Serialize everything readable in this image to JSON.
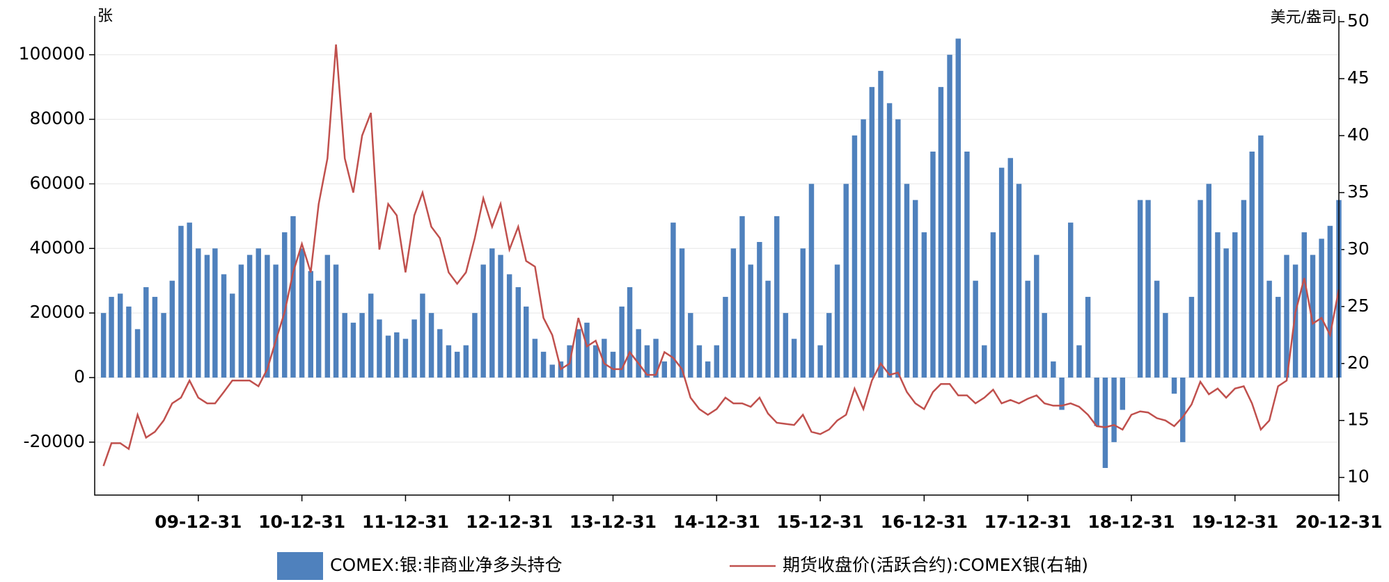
{
  "chart_data": {
    "type": "bar-line",
    "y_unit": "张",
    "y2_unit": "美元/盎司",
    "x": [
      "09-01-31",
      "09-02-28",
      "09-03-31",
      "09-04-30",
      "09-05-31",
      "09-06-30",
      "09-07-31",
      "09-08-31",
      "09-09-30",
      "09-10-31",
      "09-11-30",
      "09-12-31",
      "10-01-31",
      "10-02-28",
      "10-03-31",
      "10-04-30",
      "10-05-31",
      "10-06-30",
      "10-07-31",
      "10-08-31",
      "10-09-30",
      "10-10-31",
      "10-11-30",
      "10-12-31",
      "11-01-31",
      "11-02-28",
      "11-03-31",
      "11-04-30",
      "11-05-31",
      "11-06-30",
      "11-07-31",
      "11-08-31",
      "11-09-30",
      "11-10-31",
      "11-11-30",
      "11-12-31",
      "12-01-31",
      "12-02-29",
      "12-03-31",
      "12-04-30",
      "12-05-31",
      "12-06-30",
      "12-07-31",
      "12-08-31",
      "12-09-30",
      "12-10-31",
      "12-11-30",
      "12-12-31",
      "13-01-31",
      "13-02-28",
      "13-03-31",
      "13-04-30",
      "13-05-31",
      "13-06-30",
      "13-07-31",
      "13-08-31",
      "13-09-30",
      "13-10-31",
      "13-11-30",
      "13-12-31",
      "14-01-31",
      "14-02-28",
      "14-03-31",
      "14-04-30",
      "14-05-31",
      "14-06-30",
      "14-07-31",
      "14-08-31",
      "14-09-30",
      "14-10-31",
      "14-11-30",
      "14-12-31",
      "15-01-31",
      "15-02-28",
      "15-03-31",
      "15-04-30",
      "15-05-31",
      "15-06-30",
      "15-07-31",
      "15-08-31",
      "15-09-30",
      "15-10-31",
      "15-11-30",
      "15-12-31",
      "16-01-31",
      "16-02-29",
      "16-03-31",
      "16-04-30",
      "16-05-31",
      "16-06-30",
      "16-07-31",
      "16-08-31",
      "16-09-30",
      "16-10-31",
      "16-11-30",
      "16-12-31",
      "17-01-31",
      "17-02-28",
      "17-03-31",
      "17-04-30",
      "17-05-31",
      "17-06-30",
      "17-07-31",
      "17-08-31",
      "17-09-30",
      "17-10-31",
      "17-11-30",
      "17-12-31",
      "18-01-31",
      "18-02-28",
      "18-03-31",
      "18-04-30",
      "18-05-31",
      "18-06-30",
      "18-07-31",
      "18-08-31",
      "18-09-30",
      "18-10-31",
      "18-11-30",
      "18-12-31",
      "19-01-31",
      "19-02-28",
      "19-03-31",
      "19-04-30",
      "19-05-31",
      "19-06-30",
      "19-07-31",
      "19-08-31",
      "19-09-30",
      "19-10-31",
      "19-11-30",
      "19-12-31",
      "20-01-31",
      "20-02-29",
      "20-03-31",
      "20-04-30",
      "20-05-31",
      "20-06-30",
      "20-07-31",
      "20-08-31",
      "20-09-30",
      "20-10-31",
      "20-11-30",
      "20-12-31"
    ],
    "series": [
      {
        "name": "COMEX:银:非商业净多头持仓",
        "type": "bar",
        "color": "#4f81bd",
        "axis": "y",
        "values": [
          20000,
          25000,
          26000,
          22000,
          15000,
          28000,
          25000,
          20000,
          30000,
          47000,
          48000,
          40000,
          38000,
          40000,
          32000,
          26000,
          35000,
          38000,
          40000,
          38000,
          35000,
          45000,
          50000,
          40000,
          33000,
          30000,
          38000,
          35000,
          20000,
          17000,
          20000,
          26000,
          18000,
          13000,
          14000,
          12000,
          18000,
          26000,
          20000,
          15000,
          10000,
          8000,
          10000,
          20000,
          35000,
          40000,
          38000,
          32000,
          28000,
          22000,
          12000,
          8000,
          4000,
          5000,
          10000,
          15000,
          17000,
          10000,
          12000,
          8000,
          22000,
          28000,
          15000,
          10000,
          12000,
          5000,
          48000,
          40000,
          20000,
          10000,
          5000,
          10000,
          25000,
          40000,
          50000,
          35000,
          42000,
          30000,
          50000,
          20000,
          12000,
          40000,
          60000,
          10000,
          20000,
          35000,
          60000,
          75000,
          80000,
          90000,
          95000,
          85000,
          80000,
          60000,
          55000,
          45000,
          70000,
          90000,
          100000,
          105000,
          70000,
          30000,
          10000,
          45000,
          65000,
          68000,
          60000,
          30000,
          38000,
          20000,
          5000,
          -10000,
          48000,
          10000,
          25000,
          -15000,
          -28000,
          -20000,
          -10000,
          0,
          55000,
          55000,
          30000,
          20000,
          -5000,
          -20000,
          25000,
          55000,
          60000,
          45000,
          40000,
          45000,
          55000,
          70000,
          75000,
          30000,
          25000,
          38000,
          35000,
          45000,
          38000,
          43000,
          47000,
          55000
        ]
      },
      {
        "name": "期货收盘价(活跃合约):COMEX银(右轴)",
        "type": "line",
        "color": "#c0504d",
        "axis": "y2",
        "values": [
          11,
          13,
          13,
          12.5,
          15.5,
          13.5,
          14,
          15,
          16.5,
          17,
          18.5,
          17,
          16.5,
          16.5,
          17.5,
          18.5,
          18.5,
          18.5,
          18,
          19.5,
          22,
          24.5,
          28,
          30.5,
          28,
          34,
          38,
          48,
          38,
          35,
          40,
          42,
          30,
          34,
          33,
          28,
          33,
          35,
          32,
          31,
          28,
          27,
          28,
          31,
          34.5,
          32,
          34,
          30,
          32,
          29,
          28.5,
          24,
          22.5,
          19.5,
          20,
          24,
          21.5,
          22,
          20,
          19.5,
          19.5,
          21,
          20,
          19,
          19,
          21,
          20.5,
          19.5,
          17,
          16,
          15.5,
          16,
          17,
          16.5,
          16.5,
          16.2,
          17,
          15.6,
          14.8,
          14.7,
          14.6,
          15.5,
          14,
          13.8,
          14.2,
          15,
          15.5,
          17.8,
          16,
          18.5,
          20,
          19,
          19.2,
          17.5,
          16.5,
          16,
          17.5,
          18.2,
          18.2,
          17.2,
          17.2,
          16.5,
          17,
          17.7,
          16.5,
          16.8,
          16.5,
          16.9,
          17.2,
          16.5,
          16.3,
          16.3,
          16.5,
          16.2,
          15.5,
          14.5,
          14.4,
          14.6,
          14.2,
          15.5,
          15.8,
          15.7,
          15.2,
          15,
          14.5,
          15.3,
          16.4,
          18.4,
          17.3,
          17.8,
          17,
          17.8,
          18,
          16.5,
          14.2,
          15,
          18,
          18.5,
          24.5,
          27.5,
          23.5,
          24,
          22.5,
          26.5
        ]
      }
    ],
    "xlim": [
      "08-12-31",
      "20-12-31"
    ],
    "xticks": [
      "09-12-31",
      "10-12-31",
      "11-12-31",
      "12-12-31",
      "13-12-31",
      "14-12-31",
      "15-12-31",
      "16-12-31",
      "17-12-31",
      "18-12-31",
      "19-12-31",
      "20-12-31"
    ],
    "ylim": [
      -36400,
      112000
    ],
    "yticks": [
      -20000,
      0,
      20000,
      40000,
      60000,
      80000,
      100000
    ],
    "y2lim": [
      8.45,
      50.5
    ],
    "y2ticks": [
      10,
      15,
      20,
      25,
      30,
      35,
      40,
      45,
      50
    ],
    "grid": true,
    "legend": "bottom"
  }
}
